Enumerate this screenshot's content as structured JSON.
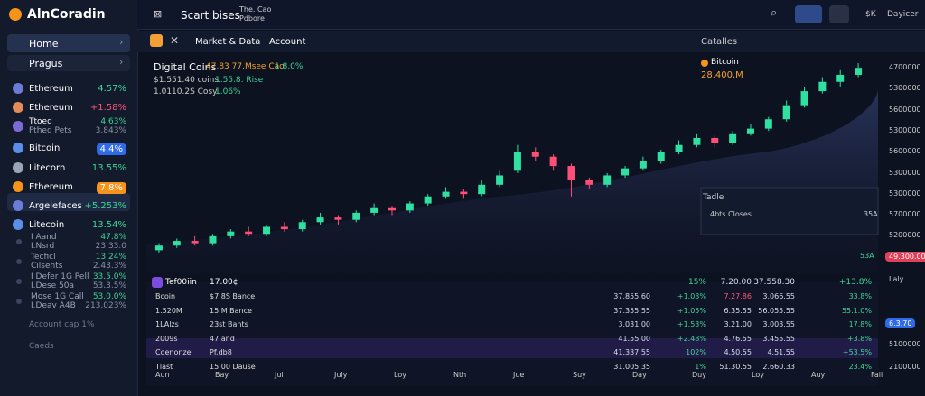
{
  "sidebar": {
    "brand": "AlnCoradin",
    "nav": [
      "Home",
      "Pragus"
    ],
    "assets": [
      {
        "name": "Ethereum",
        "change": "4.57%"
      },
      {
        "name": "Ethereum",
        "change": "+1.58%"
      },
      {
        "name": "Ttoed",
        "sub": "Fthed Pets",
        "change": "4.63%",
        "sub_change": "3.843%"
      },
      {
        "name": "Bitcoin",
        "change": "4.4%"
      },
      {
        "name": "Litecorn",
        "change": "13.55%"
      },
      {
        "name": "Ethereum",
        "change": "7.8%"
      },
      {
        "name": "Argelefaces",
        "change": "+5.253%"
      },
      {
        "name": "Litecoin",
        "change": "13.54%"
      },
      {
        "name": "I Aand",
        "sub": "I.Nsrd",
        "change": "47.8%",
        "sub_change": "23.33.0"
      },
      {
        "name": "Tecficl",
        "sub": "Cilsents",
        "change": "13.24%",
        "sub_change": "2.43.3%"
      },
      {
        "name": "I Defer 1G Pell",
        "sub": "I.Dese 50a",
        "change": "33.5.0%",
        "sub_change": "53.3.5%"
      },
      {
        "name": "Mose 1G Call",
        "sub": "I.Deav A4B",
        "change": "53.0.0%",
        "sub_change": "213.023%"
      }
    ],
    "footer": [
      "Account cap 1%",
      "Caeds"
    ]
  },
  "topbar": {
    "title": "Scart bises",
    "sub_top": "The. Cao",
    "sub_bottom": "Pdbore",
    "currency": "$K",
    "user": "Dayicer"
  },
  "tabs": {
    "items": [
      "Market & Data",
      "Account"
    ],
    "right": "Catalles"
  },
  "chart": {
    "title": "Digital Coins",
    "stats": [
      {
        "text": "47.83 77.Msee Cao",
        "change": "1.8.0%"
      },
      {
        "text": "$1.551.40 coins",
        "change": "1.55.8. Rise"
      },
      {
        "text": "1.0110.2S Cosy",
        "change": "1.06%"
      }
    ],
    "asset": "Bitcoin",
    "price": "28.400.M",
    "panel_title": "Tadle",
    "panel_text": "4bts Closes",
    "panel_value": "35A",
    "panel_note": "53A",
    "candles": {
      "open": [
        10,
        12,
        14,
        13,
        16,
        18,
        17,
        20,
        19,
        22,
        24,
        23,
        26,
        28,
        27,
        30,
        33,
        35,
        34,
        38,
        44,
        52,
        50,
        46,
        40,
        38,
        42,
        45,
        48,
        52,
        55,
        58,
        56,
        60,
        62,
        66,
        72,
        78,
        82,
        85
      ],
      "high": [
        13,
        15,
        16,
        17,
        19,
        20,
        21,
        22,
        23,
        26,
        25,
        27,
        30,
        29,
        31,
        34,
        37,
        36,
        40,
        44,
        55,
        54,
        51,
        47,
        41,
        43,
        46,
        50,
        53,
        57,
        60,
        59,
        61,
        64,
        67,
        74,
        80,
        84,
        87,
        90
      ],
      "low": [
        9,
        11,
        12,
        12,
        15,
        16,
        16,
        18,
        18,
        21,
        21,
        22,
        25,
        25,
        26,
        29,
        32,
        32,
        33,
        37,
        43,
        48,
        44,
        33,
        36,
        37,
        41,
        44,
        47,
        51,
        54,
        54,
        55,
        59,
        61,
        65,
        71,
        77,
        80,
        84
      ],
      "close": [
        12,
        14,
        13,
        16,
        18,
        17,
        20,
        19,
        22,
        24,
        23,
        26,
        28,
        27,
        30,
        33,
        35,
        34,
        38,
        42,
        52,
        50,
        46,
        40,
        38,
        42,
        45,
        48,
        52,
        55,
        58,
        56,
        60,
        62,
        66,
        72,
        78,
        82,
        85,
        88
      ]
    },
    "price_labels": [
      "4700000",
      "5300000",
      "5600000",
      "5300000",
      "5600000",
      "5300000",
      "5300000",
      "5700000",
      "5200000"
    ],
    "badge_red": "49.300.00",
    "side_label": "Laly",
    "badge_blue": "6.3.70",
    "low_labels": [
      "5100000",
      "2100000"
    ],
    "x_labels": [
      "Aun",
      "Bay",
      "Jul",
      "July",
      "Loy",
      "Nth",
      "Jue",
      "Suy",
      "Day",
      "Duy",
      "Loy",
      "Auy",
      "Fall"
    ]
  },
  "table": {
    "header": [
      "Tef00iin",
      "17.00¢",
      "15%",
      "7.20.00",
      "37.558.30",
      "+13.8%"
    ],
    "rows": [
      [
        "Bcoin",
        "$7.8S Bance",
        "37.855.60",
        "+1.03%",
        "7.27.86",
        "3.066.55",
        "33.8%"
      ],
      [
        "1.520M",
        "15.M Bance",
        "37.355.55",
        "+1.05%",
        "6.35.55",
        "56.055.55",
        "55.1.0%"
      ],
      [
        "1LAlzs",
        "23st Bants",
        "3.031.00",
        "+1.53%",
        "3.21.00",
        "3.003.55",
        "17.8%"
      ],
      [
        "2009s",
        "47.and",
        "41.55.00",
        "+2.48%",
        "4.76.55",
        "3.455.55",
        "+3.8%"
      ],
      [
        "Coenonze",
        "Pf.db8",
        "41.337.55",
        "102%",
        "4.50.55",
        "4.51.55",
        "+53.5%"
      ],
      [
        "Tlast",
        "15.00 Dause",
        "31.005.35",
        "1%",
        "51.30.55",
        "2.660.33",
        "23.4%"
      ]
    ]
  }
}
